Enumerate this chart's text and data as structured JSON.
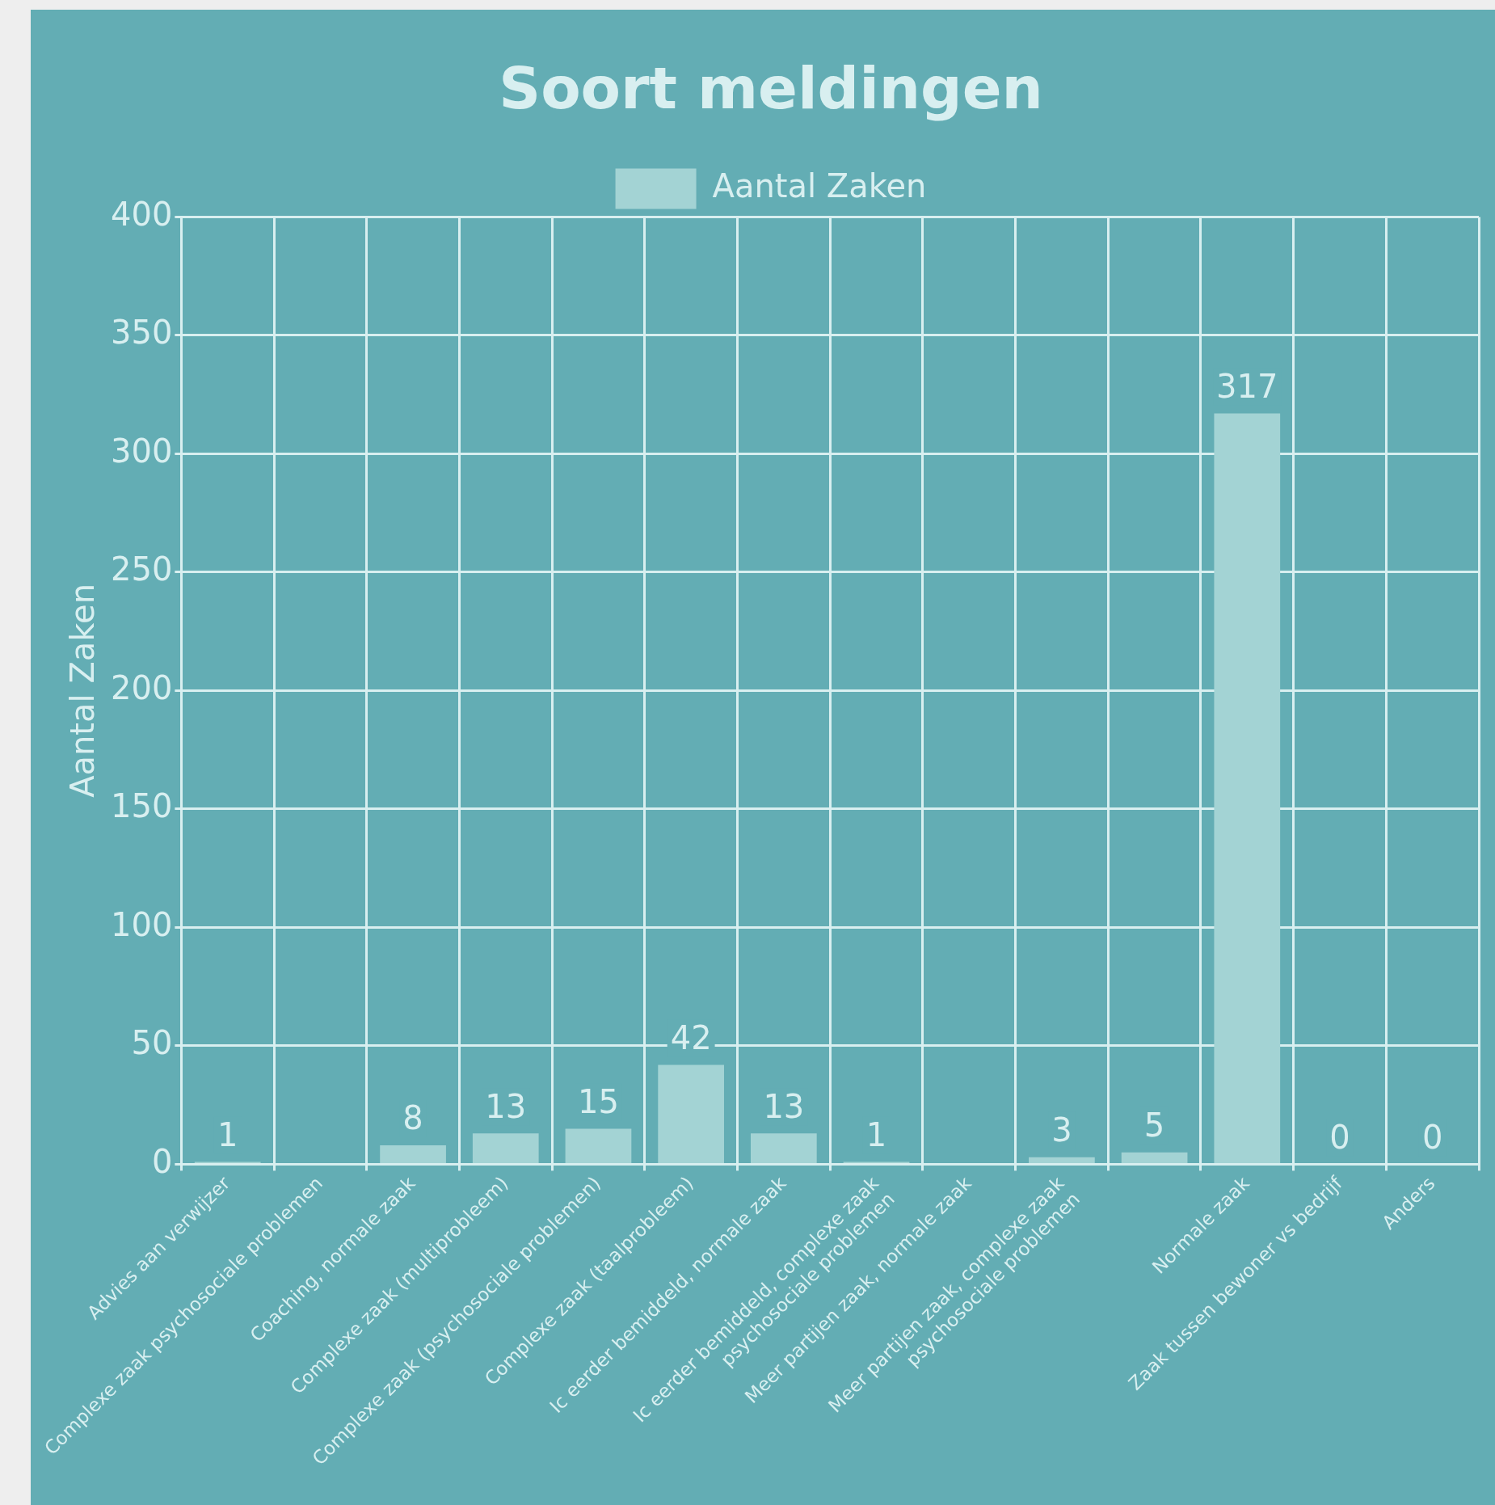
{
  "chart_data": {
    "type": "bar",
    "title": "Soort meldingen",
    "ylabel": "Aantal Zaken",
    "categories": [
      "Advies aan verwijzer",
      "Complexe zaak psychosociale problemen",
      "Coaching, normale zaak",
      "Complexe zaak (multiprobleem)",
      "Complexe zaak (psychosociale problemen)",
      "Complexe zaak (taalprobleem)",
      "Ic eerder bemiddeld, normale zaak",
      "Ic eerder bemiddeld, complexe zaak\npsychosociale problemen",
      "Meer partijen zaak, normale zaak",
      "Meer partijen zaak, complexe zaak\npsychosociale problemen",
      null,
      "Normale zaak",
      "Zaak tussen bewoner vs bedrijf",
      "Anders"
    ],
    "series": [
      {
        "name": "Aantal Zaken",
        "color": "#a3d3d4",
        "values": [
          1,
          null,
          8,
          13,
          15,
          42,
          13,
          1,
          null,
          3,
          5,
          317,
          0,
          0
        ],
        "value_labels": [
          "1",
          null,
          "8",
          "13",
          "15",
          "42",
          "13",
          "1",
          null,
          "3",
          "5",
          "317",
          "0",
          "0"
        ]
      }
    ],
    "ylim": [
      0,
      400
    ],
    "yticks": [
      0,
      50,
      100,
      150,
      200,
      250,
      300,
      350,
      400
    ],
    "grid": true,
    "legend": "top"
  }
}
